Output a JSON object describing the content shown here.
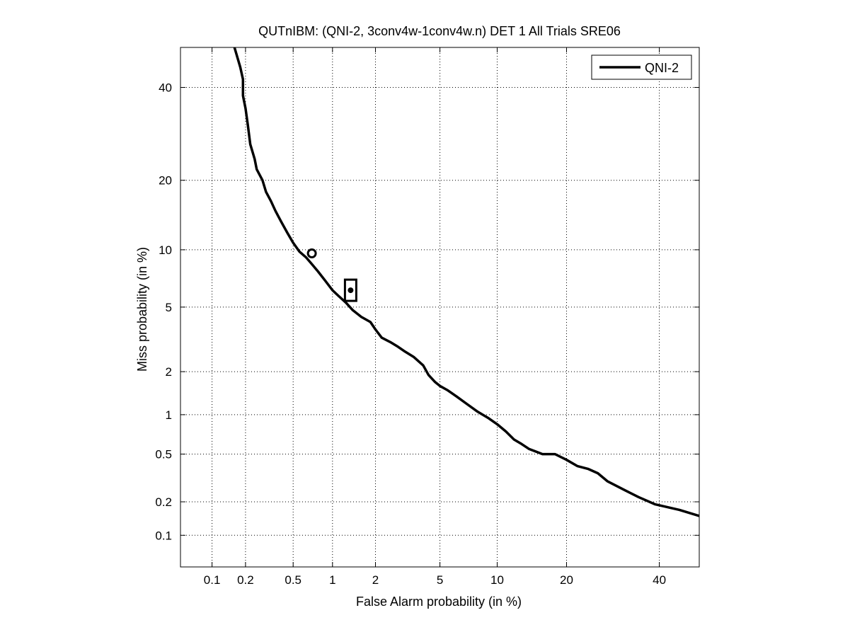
{
  "chart_data": {
    "type": "line",
    "scale": "normal-deviate (probit) on both axes",
    "title": "QUTnIBM: (QNI-2, 3conv4w-1conv4w.n) DET 1 All Trials SRE06",
    "xlabel": "False Alarm probability (in %)",
    "ylabel": "Miss probability (in %)",
    "xlim": [
      0.05,
      50
    ],
    "ylim": [
      0.05,
      50
    ],
    "xticks": [
      0.1,
      0.2,
      0.5,
      1,
      2,
      5,
      10,
      20,
      40
    ],
    "xtick_labels": [
      "0.1",
      "0.2",
      "0.5",
      "1",
      "2",
      "5",
      "10",
      "20",
      "40"
    ],
    "yticks": [
      0.1,
      0.2,
      0.5,
      1,
      2,
      5,
      10,
      20,
      40
    ],
    "ytick_labels": [
      "0.1",
      "0.2",
      "0.5",
      "1",
      "2",
      "5",
      "10",
      "20",
      "40"
    ],
    "grid": true,
    "legend_position": "top-right",
    "series": [
      {
        "name": "QNI-2",
        "color": "#000000",
        "x": [
          0.16,
          0.18,
          0.19,
          0.19,
          0.2,
          0.21,
          0.22,
          0.24,
          0.25,
          0.28,
          0.3,
          0.33,
          0.36,
          0.4,
          0.45,
          0.5,
          0.56,
          0.63,
          0.7,
          0.78,
          0.88,
          1.0,
          1.1,
          1.25,
          1.4,
          1.6,
          1.85,
          2.0,
          2.2,
          2.5,
          2.8,
          3.1,
          3.5,
          4.0,
          4.3,
          4.7,
          5.0,
          5.5,
          6.2,
          7.0,
          8.0,
          9.0,
          10.0,
          11.0,
          12.0,
          13.0,
          14.0,
          16.0,
          18.0,
          20.0,
          22.0,
          24.0,
          26.0,
          28.0,
          32.0,
          35.0,
          39.0,
          45.0,
          50.0
        ],
        "y": [
          50,
          45,
          42,
          38,
          35,
          31,
          27,
          24,
          22,
          20,
          18,
          16.5,
          15,
          13.5,
          12,
          10.8,
          9.8,
          9.2,
          8.5,
          7.8,
          7.0,
          6.2,
          5.8,
          5.3,
          4.8,
          4.4,
          4.1,
          3.7,
          3.3,
          3.1,
          2.9,
          2.7,
          2.5,
          2.2,
          1.9,
          1.7,
          1.6,
          1.5,
          1.35,
          1.2,
          1.05,
          0.95,
          0.85,
          0.75,
          0.65,
          0.6,
          0.55,
          0.5,
          0.5,
          0.45,
          0.4,
          0.38,
          0.35,
          0.3,
          0.25,
          0.22,
          0.19,
          0.17,
          0.15
        ]
      }
    ],
    "markers": [
      {
        "name": "min-dcf-point",
        "shape": "circle",
        "x": 0.7,
        "y": 9.6
      },
      {
        "name": "actual-dcf-point",
        "shape": "square",
        "x": 1.35,
        "y": 6.2
      }
    ]
  }
}
